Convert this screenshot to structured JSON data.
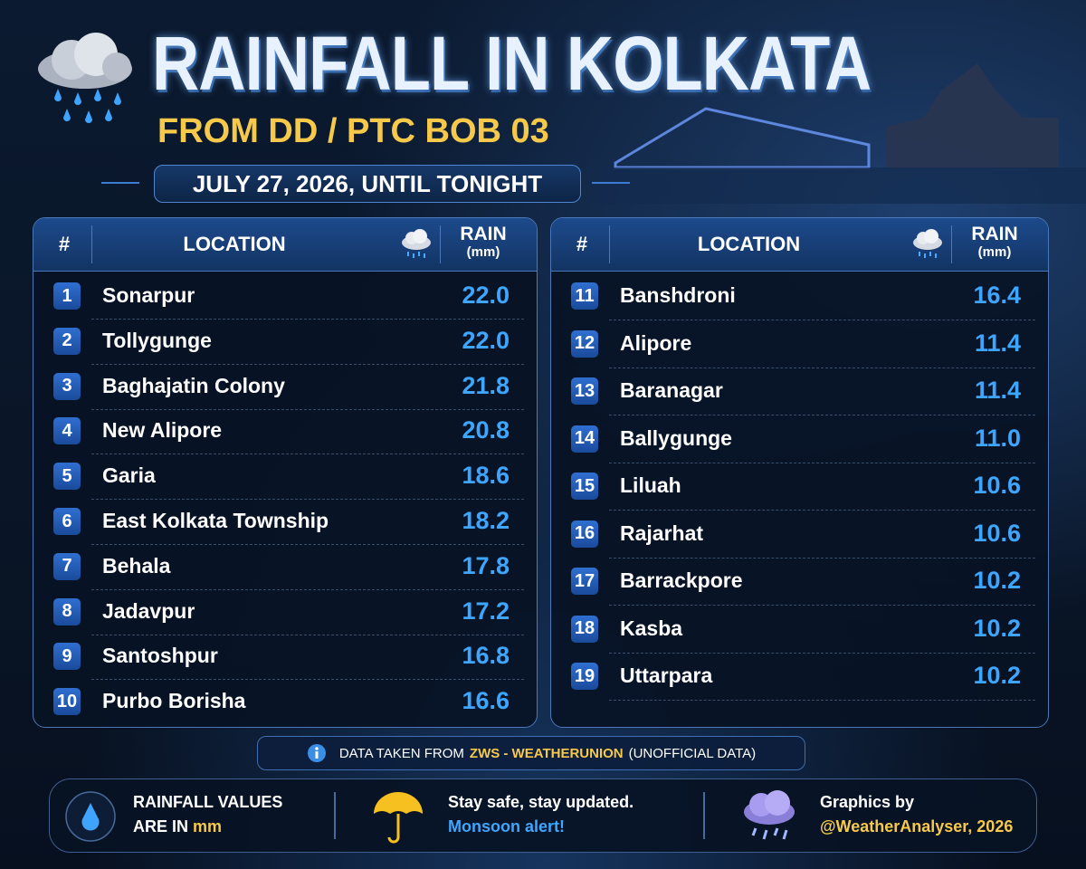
{
  "header": {
    "title": "RAINFALL IN KOLKATA",
    "subtitle": "FROM DD / PTC BOB 03",
    "date": "JULY 27, 2026, UNTIL TONIGHT"
  },
  "tables": [
    {
      "columns": {
        "rank": "#",
        "location": "LOCATION",
        "rain": "RAIN",
        "unit": "(mm)"
      },
      "rows": [
        {
          "rank": 1,
          "location": "Sonarpur",
          "rain": "22.0"
        },
        {
          "rank": 2,
          "location": "Tollygunge",
          "rain": "22.0"
        },
        {
          "rank": 3,
          "location": "Baghajatin Colony",
          "rain": "21.8"
        },
        {
          "rank": 4,
          "location": "New Alipore",
          "rain": "20.8"
        },
        {
          "rank": 5,
          "location": "Garia",
          "rain": "18.6"
        },
        {
          "rank": 6,
          "location": "East Kolkata Township",
          "rain": "18.2"
        },
        {
          "rank": 7,
          "location": "Behala",
          "rain": "17.8"
        },
        {
          "rank": 8,
          "location": "Jadavpur",
          "rain": "17.2"
        },
        {
          "rank": 9,
          "location": "Santoshpur",
          "rain": "16.8"
        },
        {
          "rank": 10,
          "location": "Purbo Borisha",
          "rain": "16.6"
        }
      ]
    },
    {
      "columns": {
        "rank": "#",
        "location": "LOCATION",
        "rain": "RAIN",
        "unit": "(mm)"
      },
      "rows": [
        {
          "rank": 11,
          "location": "Banshdroni",
          "rain": "16.4"
        },
        {
          "rank": 12,
          "location": "Alipore",
          "rain": "11.4"
        },
        {
          "rank": 13,
          "location": "Baranagar",
          "rain": "11.4"
        },
        {
          "rank": 14,
          "location": "Ballygunge",
          "rain": "11.0"
        },
        {
          "rank": 15,
          "location": "Liluah",
          "rain": "10.6"
        },
        {
          "rank": 16,
          "location": "Rajarhat",
          "rain": "10.6"
        },
        {
          "rank": 17,
          "location": "Barrackpore",
          "rain": "10.2"
        },
        {
          "rank": 18,
          "location": "Kasba",
          "rain": "10.2"
        },
        {
          "rank": 19,
          "location": "Uttarpara",
          "rain": "10.2"
        }
      ]
    }
  ],
  "source": {
    "prefix": "DATA TAKEN FROM",
    "name": "ZWS - WEATHERUNION",
    "note": "(UNOFFICIAL DATA)"
  },
  "footer": {
    "units_line1": "RAINFALL VALUES",
    "units_line2": "ARE IN",
    "units_unit": "mm",
    "safety_line1": "Stay safe, stay updated.",
    "safety_line2": "Monsoon alert!",
    "credit_line1": "Graphics by",
    "credit_line2": "@WeatherAnalyser, 2026"
  }
}
